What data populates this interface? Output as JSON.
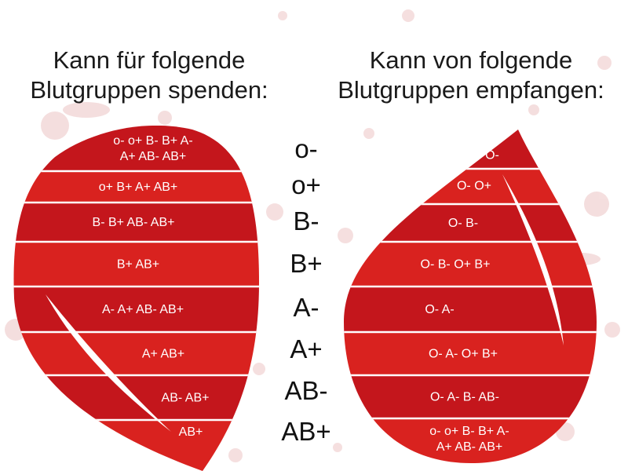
{
  "headings": {
    "left": [
      "Kann für folgende",
      "Blutgruppen spenden:"
    ],
    "right": [
      "Kann von folgende",
      "Blutgruppen empfangen:"
    ]
  },
  "blood_types": [
    "o-",
    "o+",
    "B-",
    "B+",
    "A-",
    "A+",
    "AB-",
    "AB+"
  ],
  "donate_to": [
    [
      "o- o+ B- B+ A-",
      "A+ AB- AB+"
    ],
    [
      "o+ B+ A+ AB+"
    ],
    [
      "B- B+ AB- AB+"
    ],
    [
      "B+         AB+"
    ],
    [
      "A-  A+  AB-  AB+"
    ],
    [
      "A+  AB+"
    ],
    [
      "AB-  AB+"
    ],
    [
      "AB+"
    ]
  ],
  "receive_from": [
    [
      "O-"
    ],
    [
      "O- O+"
    ],
    [
      "O-    B-"
    ],
    [
      "O-   B-  O+  B+"
    ],
    [
      "O-    A-"
    ],
    [
      "O-    A-  O+  B+"
    ],
    [
      "O-    A-  B-  AB-"
    ],
    [
      "o- o+ B- B+ A-",
      "A+ AB- AB+"
    ]
  ],
  "colors": {
    "drop": "#c4161c",
    "drop_dark": "#a30f14",
    "band_alt": "#d9221f",
    "divider": "#ffffff",
    "splatter": "#e9b9b9"
  }
}
